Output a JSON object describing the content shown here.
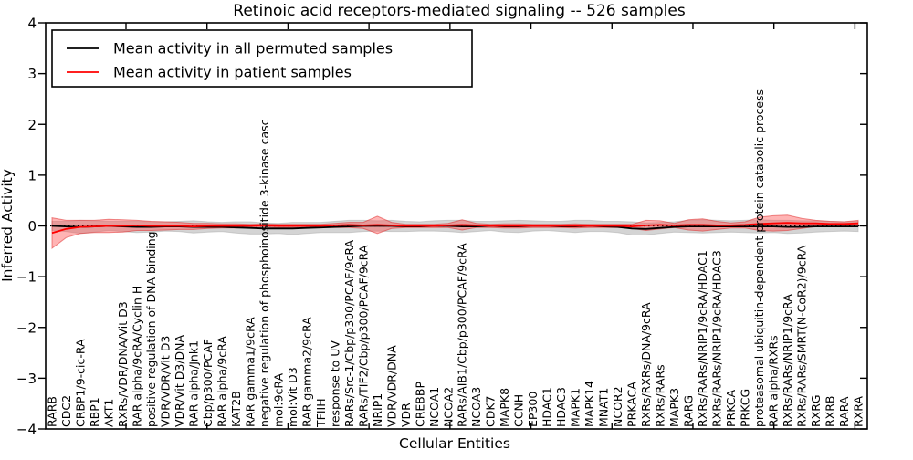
{
  "chart_data": {
    "type": "line",
    "title": "Retinoic acid receptors-mediated signaling -- 526 samples",
    "xlabel": "Cellular Entities",
    "ylabel": "Inferred Activity",
    "ylim": [
      -4,
      4
    ],
    "yticks": [
      4,
      3,
      2,
      1,
      0,
      -1,
      -2,
      -3,
      -4
    ],
    "grid": false,
    "zero_line": true,
    "legend_position": "upper left",
    "categories": [
      "RARB",
      "CDC2",
      "CRBP1/9-cic-RA",
      "RBP1",
      "AKT1",
      "RXRs/VDR/DNA/Vit D3",
      "RAR alpha/9cRA/Cyclin H",
      "positive regulation of DNA binding",
      "VDR/VDR/Vit D3",
      "VDR/Vit D3/DNA",
      "RAR alpha/Jnk1",
      "Cbp/p300/PCAF",
      "RAR alpha/9cRA",
      "KAT2B",
      "RAR gamma1/9cRA",
      "negative regulation of phosphoinositide 3-kinase casc",
      "mol:9cRA",
      "mol:Vit D3",
      "RAR gamma2/9cRA",
      "TFIIH",
      "response to UV",
      "RARs/Src-1/Cbp/p300/PCAF/9cRA",
      "RARs/TIF2/Cbp/p300/PCAF/9cRA",
      "NRIP1",
      "VDR/VDR/DNA",
      "VDR",
      "CREBBP",
      "NCOA1",
      "NCOA2",
      "RARs/AIB1/Cbp/p300/PCAF/9cRA",
      "NCOA3",
      "CDK7",
      "MAPK8",
      "CCNH",
      "EP300",
      "HDAC1",
      "HDAC3",
      "MAPK1",
      "MAPK14",
      "MNAT1",
      "NCOR2",
      "PRKACA",
      "RXRs/RXRs/DNA/9cRA",
      "RXRs/RARs",
      "MAPK3",
      "RARG",
      "RXRs/RARs/NRIP1/9cRA/HDAC1",
      "RXRs/RARs/NRIP1/9cRA/HDAC3",
      "PRKCA",
      "PRKCG",
      "proteasomal ubiquitin-dependent protein catabolic process",
      "RAR alpha/RXRs",
      "RXRs/RARs/NRIP1/9cRA",
      "RXRs/RARs/SMRT(N-CoR2)/9cRA",
      "RXRG",
      "RXRB",
      "RARA",
      "RXRA"
    ],
    "series": [
      {
        "name": "Mean activity in all permuted samples",
        "color": "#000000",
        "band_color": "#c9c9c9",
        "values": [
          0.0,
          -0.01,
          -0.02,
          -0.01,
          0.0,
          -0.01,
          -0.02,
          -0.02,
          -0.01,
          -0.01,
          -0.02,
          -0.02,
          -0.02,
          -0.03,
          -0.04,
          -0.05,
          -0.05,
          -0.05,
          -0.04,
          -0.03,
          -0.02,
          -0.01,
          0.0,
          0.0,
          0.0,
          -0.01,
          -0.01,
          0.0,
          0.0,
          -0.01,
          -0.01,
          0.0,
          -0.01,
          -0.01,
          0.0,
          0.0,
          -0.01,
          -0.01,
          0.0,
          -0.01,
          -0.02,
          -0.05,
          -0.06,
          -0.04,
          -0.02,
          -0.01,
          -0.01,
          -0.01,
          -0.01,
          -0.01,
          -0.01,
          -0.01,
          -0.02,
          -0.02,
          -0.01,
          -0.01,
          -0.01,
          -0.01
        ],
        "band": [
          0.09,
          0.1,
          0.13,
          0.11,
          0.09,
          0.1,
          0.11,
          0.1,
          0.09,
          0.1,
          0.12,
          0.1,
          0.09,
          0.11,
          0.12,
          0.11,
          0.1,
          0.12,
          0.11,
          0.1,
          0.11,
          0.12,
          0.11,
          0.1,
          0.11,
          0.1,
          0.09,
          0.1,
          0.11,
          0.12,
          0.1,
          0.09,
          0.11,
          0.12,
          0.1,
          0.09,
          0.1,
          0.12,
          0.11,
          0.1,
          0.11,
          0.13,
          0.12,
          0.11,
          0.1,
          0.12,
          0.13,
          0.12,
          0.11,
          0.12,
          0.13,
          0.12,
          0.13,
          0.12,
          0.11,
          0.1,
          0.09,
          0.1
        ]
      },
      {
        "name": "Mean activity in patient samples",
        "color": "#ff0000",
        "band_color": "#ff4d4d",
        "values": [
          -0.14,
          -0.06,
          -0.02,
          -0.01,
          0.0,
          0.0,
          0.01,
          0.0,
          0.0,
          0.0,
          -0.01,
          0.0,
          0.0,
          0.0,
          0.0,
          0.01,
          0.0,
          0.0,
          0.0,
          0.0,
          0.01,
          0.02,
          0.01,
          0.02,
          0.01,
          0.0,
          0.0,
          0.0,
          0.01,
          0.02,
          0.01,
          0.0,
          0.0,
          0.0,
          0.0,
          0.0,
          0.0,
          0.0,
          0.0,
          0.0,
          0.0,
          -0.01,
          0.01,
          0.02,
          0.01,
          0.02,
          0.02,
          0.01,
          0.01,
          0.02,
          0.04,
          0.05,
          0.06,
          0.05,
          0.05,
          0.04,
          0.04,
          0.05
        ],
        "band": [
          0.3,
          0.17,
          0.13,
          0.12,
          0.13,
          0.12,
          0.1,
          0.09,
          0.08,
          0.07,
          0.06,
          0.05,
          0.04,
          0.04,
          0.03,
          0.03,
          0.03,
          0.03,
          0.03,
          0.03,
          0.04,
          0.05,
          0.06,
          0.17,
          0.06,
          0.03,
          0.03,
          0.03,
          0.04,
          0.1,
          0.04,
          0.03,
          0.04,
          0.04,
          0.03,
          0.03,
          0.03,
          0.04,
          0.03,
          0.03,
          0.03,
          0.04,
          0.1,
          0.08,
          0.04,
          0.1,
          0.12,
          0.08,
          0.05,
          0.06,
          0.13,
          0.15,
          0.15,
          0.1,
          0.06,
          0.05,
          0.04,
          0.06
        ]
      }
    ]
  }
}
